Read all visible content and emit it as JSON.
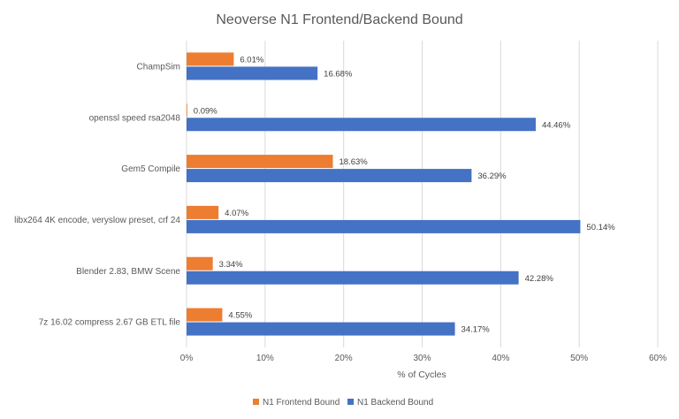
{
  "chart_data": {
    "type": "bar",
    "orientation": "horizontal",
    "title": "Neoverse N1 Frontend/Backend Bound",
    "xlabel": "% of Cycles",
    "ylabel": "",
    "xlim": [
      0,
      60
    ],
    "x_ticks": [
      "0%",
      "10%",
      "20%",
      "30%",
      "40%",
      "50%",
      "60%"
    ],
    "grid": "vertical",
    "legend_position": "bottom",
    "categories": [
      "ChampSim",
      "openssl speed rsa2048",
      "Gem5 Compile",
      "libx264 4K encode, veryslow preset, crf 24",
      "Blender 2.83, BMW Scene",
      "7z 16.02 compress 2.67 GB ETL file"
    ],
    "series": [
      {
        "name": "N1 Frontend Bound",
        "color": "#ED7D31",
        "values": [
          6.01,
          0.09,
          18.63,
          4.07,
          3.34,
          4.55
        ],
        "labels": [
          "6.01%",
          "0.09%",
          "18.63%",
          "4.07%",
          "3.34%",
          "4.55%"
        ]
      },
      {
        "name": "N1 Backend Bound",
        "color": "#4472C4",
        "values": [
          16.68,
          44.46,
          36.29,
          50.14,
          42.28,
          34.17
        ],
        "labels": [
          "16.68%",
          "44.46%",
          "36.29%",
          "50.14%",
          "42.28%",
          "34.17%"
        ]
      }
    ]
  }
}
